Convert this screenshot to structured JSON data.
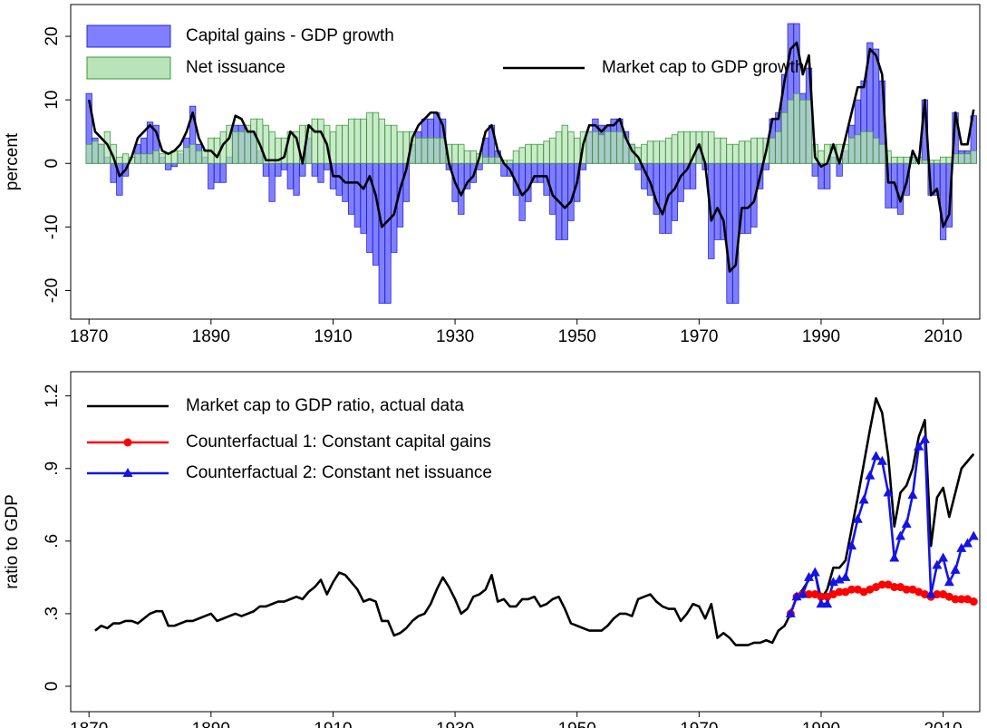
{
  "chart_data": [
    {
      "type": "bar",
      "ylabel": "percent",
      "xlim": [
        1867,
        2016
      ],
      "ylim": [
        -24.5,
        25
      ],
      "xticks": [
        1870,
        1890,
        1910,
        1930,
        1950,
        1970,
        1990,
        2010
      ],
      "yticks": [
        -20,
        -10,
        0,
        10,
        20
      ],
      "x": [
        1870,
        1871,
        1872,
        1873,
        1874,
        1875,
        1876,
        1877,
        1878,
        1879,
        1880,
        1881,
        1882,
        1883,
        1884,
        1885,
        1886,
        1887,
        1888,
        1889,
        1890,
        1891,
        1892,
        1893,
        1894,
        1895,
        1896,
        1897,
        1898,
        1899,
        1900,
        1901,
        1902,
        1903,
        1904,
        1905,
        1906,
        1907,
        1908,
        1909,
        1910,
        1911,
        1912,
        1913,
        1914,
        1915,
        1916,
        1917,
        1918,
        1919,
        1920,
        1921,
        1922,
        1923,
        1924,
        1925,
        1926,
        1927,
        1928,
        1929,
        1930,
        1931,
        1932,
        1933,
        1934,
        1935,
        1936,
        1937,
        1938,
        1939,
        1940,
        1941,
        1942,
        1943,
        1944,
        1945,
        1946,
        1947,
        1948,
        1949,
        1950,
        1951,
        1952,
        1953,
        1954,
        1955,
        1956,
        1957,
        1958,
        1959,
        1960,
        1961,
        1962,
        1963,
        1964,
        1965,
        1966,
        1967,
        1968,
        1969,
        1970,
        1971,
        1972,
        1973,
        1974,
        1975,
        1976,
        1977,
        1978,
        1979,
        1980,
        1981,
        1982,
        1983,
        1984,
        1985,
        1986,
        1987,
        1988,
        1989,
        1990,
        1991,
        1992,
        1993,
        1994,
        1995,
        1996,
        1997,
        1998,
        1999,
        2000,
        2001,
        2002,
        2003,
        2004,
        2005,
        2006,
        2007,
        2008,
        2009,
        2010,
        2011,
        2012,
        2013,
        2014,
        2015
      ],
      "series": [
        {
          "name": "Capital gains - GDP growth",
          "type": "bar",
          "color": "#8080ff",
          "edge": "#2424d8",
          "values": [
            11,
            4,
            3,
            1,
            -3,
            -5,
            -2,
            0,
            3,
            4,
            6.5,
            6,
            1,
            -1,
            -0.5,
            1.5,
            4,
            9,
            3,
            1,
            -4,
            -3,
            -3,
            1,
            6,
            6,
            5,
            5,
            2,
            -2,
            -6,
            -2,
            -1,
            -4,
            -5,
            -2,
            4,
            -2,
            -3,
            -1,
            -4,
            -5,
            -6,
            -8,
            -10,
            -11,
            -14,
            -16,
            -22,
            -22,
            -14,
            -10,
            -6,
            3,
            5,
            7,
            7,
            8,
            7,
            -1,
            -6,
            -8,
            -4,
            -3,
            -1,
            4,
            6,
            2,
            -2,
            -2,
            -5,
            -9,
            -6,
            -3,
            -3,
            -5,
            -8,
            -12,
            -12,
            -9,
            -6,
            -1,
            5,
            7,
            6,
            6,
            7,
            7,
            5,
            3,
            -1,
            -4,
            -5,
            -8,
            -11,
            -11,
            -9,
            -6,
            -4,
            -4,
            3,
            -1,
            -15,
            -12,
            -12,
            -22,
            -22,
            -11,
            -11,
            -10,
            -4,
            -1,
            7,
            8,
            14,
            22,
            22,
            11,
            15,
            -2,
            -4,
            -4,
            1,
            -2,
            2,
            6,
            10,
            13,
            19,
            18,
            13,
            -7,
            -7,
            -8,
            -5,
            1,
            0,
            10,
            -5,
            -5,
            -12,
            -10,
            8,
            2,
            2,
            7.5
          ]
        },
        {
          "name": "Net issuance",
          "type": "bar",
          "color": "#b9e3b9",
          "edge": "#3c9a3c",
          "values": [
            3,
            3.5,
            3,
            5,
            3,
            1,
            1.5,
            1,
            1.5,
            1.5,
            1.5,
            2,
            1.5,
            1.5,
            2,
            2,
            2.5,
            3,
            2,
            2,
            4,
            4,
            5,
            6,
            5,
            5,
            6,
            7,
            7,
            6,
            5,
            4,
            4,
            5,
            5,
            6,
            6,
            7,
            7,
            6,
            5,
            6,
            6,
            7,
            7,
            7,
            8,
            8,
            7,
            6,
            6,
            5,
            5,
            5,
            4,
            4,
            4,
            4,
            4,
            3,
            3,
            3,
            2,
            2,
            1.5,
            1,
            1,
            1,
            0.5,
            0.5,
            2,
            2.5,
            3,
            3,
            3,
            3.5,
            4,
            5,
            6,
            5,
            4,
            5,
            5,
            5,
            4.5,
            5,
            5,
            5,
            4,
            3,
            2.5,
            3,
            3.5,
            3.5,
            3.5,
            4,
            4.5,
            5,
            5,
            5,
            5,
            5,
            5,
            4,
            4,
            3,
            3,
            3.5,
            3.5,
            4,
            4,
            4,
            4,
            5,
            8,
            10,
            11,
            10,
            10,
            3,
            2,
            3,
            3,
            3,
            3,
            4,
            4.5,
            5,
            5,
            4,
            3,
            2,
            1,
            1,
            1,
            1,
            1,
            0.5,
            0.5,
            0.5,
            1,
            1,
            1.5,
            1.5,
            1.5,
            2
          ]
        },
        {
          "name": "Market cap to GDP growth",
          "type": "line",
          "color": "#000000",
          "values": [
            10,
            5,
            4,
            3,
            1,
            -2,
            -1,
            1,
            4,
            5,
            6,
            5,
            2,
            1.5,
            2,
            3,
            5,
            8,
            4,
            2,
            2,
            1,
            3,
            4,
            7.5,
            7,
            5,
            5,
            3,
            0.5,
            0.5,
            0.5,
            1,
            5,
            4,
            0,
            6,
            5,
            5,
            3,
            -2,
            -2,
            -3,
            -3,
            -3,
            -4,
            -2,
            -5,
            -10,
            -9,
            -8,
            -4,
            -1,
            4,
            6,
            7,
            8,
            8,
            6,
            0,
            -3,
            -5,
            -3,
            -2,
            1,
            5,
            6,
            2,
            0,
            -1,
            -3,
            -5,
            -4,
            -2,
            -2,
            -2,
            -5,
            -6,
            -7,
            -6,
            -3,
            3,
            6,
            6,
            5,
            6,
            6,
            7,
            4,
            2,
            1,
            -1,
            -3,
            -6,
            -8,
            -5,
            -4,
            -2,
            -1,
            1,
            3,
            0,
            -9,
            -7,
            -9,
            -17,
            -16,
            -7,
            -7,
            -6,
            -2,
            2,
            7,
            7,
            13,
            18,
            19,
            14,
            17,
            1,
            -0.5,
            0,
            3,
            0,
            4,
            8,
            12,
            12,
            18,
            17,
            14,
            -3,
            -3,
            -6,
            -3,
            2,
            0,
            10,
            -5,
            -4,
            -10,
            -8,
            8,
            3,
            3,
            8.5
          ]
        }
      ]
    },
    {
      "type": "line",
      "ylabel": "ratio to GDP",
      "xlim": [
        1867,
        2016
      ],
      "ylim": [
        -0.105,
        1.3
      ],
      "xticks": [
        1870,
        1890,
        1910,
        1930,
        1950,
        1970,
        1990,
        2010
      ],
      "yticks": [
        0,
        {
          "value": 0.3,
          "label": ".3"
        },
        {
          "value": 0.6,
          "label": ".6"
        },
        {
          "value": 0.9,
          "label": ".9"
        },
        1.2
      ],
      "series": [
        {
          "name": "Market cap to GDP ratio, actual data",
          "color": "#000000",
          "x": [
            1871,
            1872,
            1873,
            1874,
            1875,
            1876,
            1877,
            1878,
            1879,
            1880,
            1881,
            1882,
            1883,
            1884,
            1885,
            1886,
            1887,
            1888,
            1889,
            1890,
            1891,
            1892,
            1893,
            1894,
            1895,
            1896,
            1897,
            1898,
            1899,
            1900,
            1901,
            1902,
            1903,
            1904,
            1905,
            1906,
            1907,
            1908,
            1909,
            1910,
            1911,
            1912,
            1913,
            1914,
            1915,
            1916,
            1917,
            1918,
            1919,
            1920,
            1921,
            1922,
            1923,
            1924,
            1925,
            1926,
            1927,
            1928,
            1929,
            1930,
            1931,
            1932,
            1933,
            1934,
            1935,
            1936,
            1937,
            1938,
            1939,
            1940,
            1941,
            1942,
            1943,
            1944,
            1945,
            1946,
            1947,
            1948,
            1949,
            1950,
            1951,
            1952,
            1953,
            1954,
            1955,
            1956,
            1957,
            1958,
            1959,
            1960,
            1961,
            1962,
            1963,
            1964,
            1965,
            1966,
            1967,
            1968,
            1969,
            1970,
            1971,
            1972,
            1973,
            1974,
            1975,
            1976,
            1977,
            1978,
            1979,
            1980,
            1981,
            1982,
            1983,
            1984,
            1985,
            1986,
            1987,
            1988,
            1989,
            1990,
            1991,
            1992,
            1993,
            1994,
            1995,
            1996,
            1997,
            1998,
            1999,
            2000,
            2001,
            2002,
            2003,
            2004,
            2005,
            2006,
            2007,
            2008,
            2009,
            2010,
            2011,
            2012,
            2013,
            2014,
            2015
          ],
          "values": [
            0.23,
            0.25,
            0.24,
            0.26,
            0.26,
            0.27,
            0.27,
            0.26,
            0.28,
            0.3,
            0.31,
            0.31,
            0.25,
            0.25,
            0.26,
            0.27,
            0.27,
            0.28,
            0.29,
            0.3,
            0.27,
            0.28,
            0.29,
            0.3,
            0.29,
            0.3,
            0.31,
            0.33,
            0.33,
            0.34,
            0.35,
            0.35,
            0.36,
            0.37,
            0.36,
            0.39,
            0.41,
            0.44,
            0.38,
            0.43,
            0.47,
            0.46,
            0.43,
            0.4,
            0.35,
            0.36,
            0.35,
            0.27,
            0.27,
            0.21,
            0.22,
            0.24,
            0.27,
            0.29,
            0.3,
            0.34,
            0.4,
            0.45,
            0.41,
            0.36,
            0.3,
            0.32,
            0.37,
            0.38,
            0.4,
            0.46,
            0.35,
            0.36,
            0.33,
            0.33,
            0.36,
            0.36,
            0.37,
            0.33,
            0.34,
            0.36,
            0.37,
            0.32,
            0.26,
            0.25,
            0.24,
            0.23,
            0.23,
            0.23,
            0.25,
            0.28,
            0.3,
            0.3,
            0.29,
            0.36,
            0.37,
            0.38,
            0.35,
            0.33,
            0.32,
            0.32,
            0.27,
            0.3,
            0.34,
            0.33,
            0.28,
            0.34,
            0.2,
            0.22,
            0.2,
            0.17,
            0.17,
            0.17,
            0.18,
            0.18,
            0.19,
            0.18,
            0.23,
            0.25,
            0.3,
            0.37,
            0.4,
            0.44,
            0.47,
            0.36,
            0.4,
            0.49,
            0.49,
            0.52,
            0.65,
            0.78,
            0.92,
            1.06,
            1.19,
            1.13,
            0.95,
            0.66,
            0.8,
            0.83,
            0.9,
            1.03,
            1.1,
            0.58,
            0.78,
            0.82,
            0.7,
            0.8,
            0.9,
            0.93,
            0.96
          ]
        },
        {
          "name": "Counterfactual 1: Constant capital gains",
          "color": "#ff0000",
          "marker": "circle",
          "x": [
            1985,
            1986,
            1987,
            1988,
            1989,
            1990,
            1991,
            1992,
            1993,
            1994,
            1995,
            1996,
            1997,
            1998,
            1999,
            2000,
            2001,
            2002,
            2003,
            2004,
            2005,
            2006,
            2007,
            2008,
            2009,
            2010,
            2011,
            2012,
            2013,
            2014,
            2015
          ],
          "values": [
            0.3,
            0.37,
            0.38,
            0.38,
            0.38,
            0.37,
            0.37,
            0.38,
            0.39,
            0.39,
            0.4,
            0.4,
            0.39,
            0.4,
            0.41,
            0.42,
            0.42,
            0.41,
            0.41,
            0.4,
            0.4,
            0.39,
            0.38,
            0.37,
            0.38,
            0.38,
            0.37,
            0.36,
            0.36,
            0.36,
            0.35
          ]
        },
        {
          "name": "Counterfactual 2: Constant net issuance",
          "color": "#1414e6",
          "marker": "triangle",
          "x": [
            1985,
            1986,
            1987,
            1988,
            1989,
            1990,
            1991,
            1992,
            1993,
            1994,
            1995,
            1996,
            1997,
            1998,
            1999,
            2000,
            2001,
            2002,
            2003,
            2004,
            2005,
            2006,
            2007,
            2008,
            2009,
            2010,
            2011,
            2012,
            2013,
            2014,
            2015
          ],
          "values": [
            0.3,
            0.37,
            0.38,
            0.45,
            0.47,
            0.34,
            0.34,
            0.43,
            0.44,
            0.45,
            0.58,
            0.69,
            0.77,
            0.87,
            0.95,
            0.93,
            0.8,
            0.53,
            0.62,
            0.67,
            0.79,
            0.99,
            1.02,
            0.38,
            0.5,
            0.53,
            0.43,
            0.48,
            0.57,
            0.59,
            0.62
          ]
        }
      ]
    }
  ]
}
